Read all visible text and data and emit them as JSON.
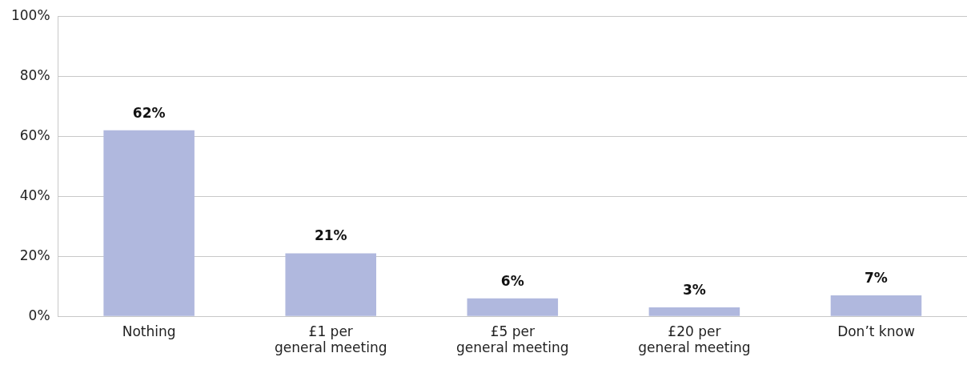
{
  "chart_data": {
    "type": "bar",
    "categories": [
      "Nothing",
      "£1 per\ngeneral meeting",
      "£5 per\ngeneral meeting",
      "£20 per\ngeneral meeting",
      "Don’t know"
    ],
    "values": [
      62,
      21,
      6,
      3,
      7
    ],
    "value_labels": [
      "62%",
      "21%",
      "6%",
      "3%",
      "7%"
    ],
    "color": "#b0b8de",
    "ylim": [
      0,
      100
    ],
    "yticks": [
      {
        "value": 0,
        "label": "0%"
      },
      {
        "value": 20,
        "label": "20%"
      },
      {
        "value": 40,
        "label": "40%"
      },
      {
        "value": 60,
        "label": "60%"
      },
      {
        "value": 80,
        "label": "80%"
      },
      {
        "value": 100,
        "label": "100%"
      }
    ],
    "grid": "y"
  }
}
